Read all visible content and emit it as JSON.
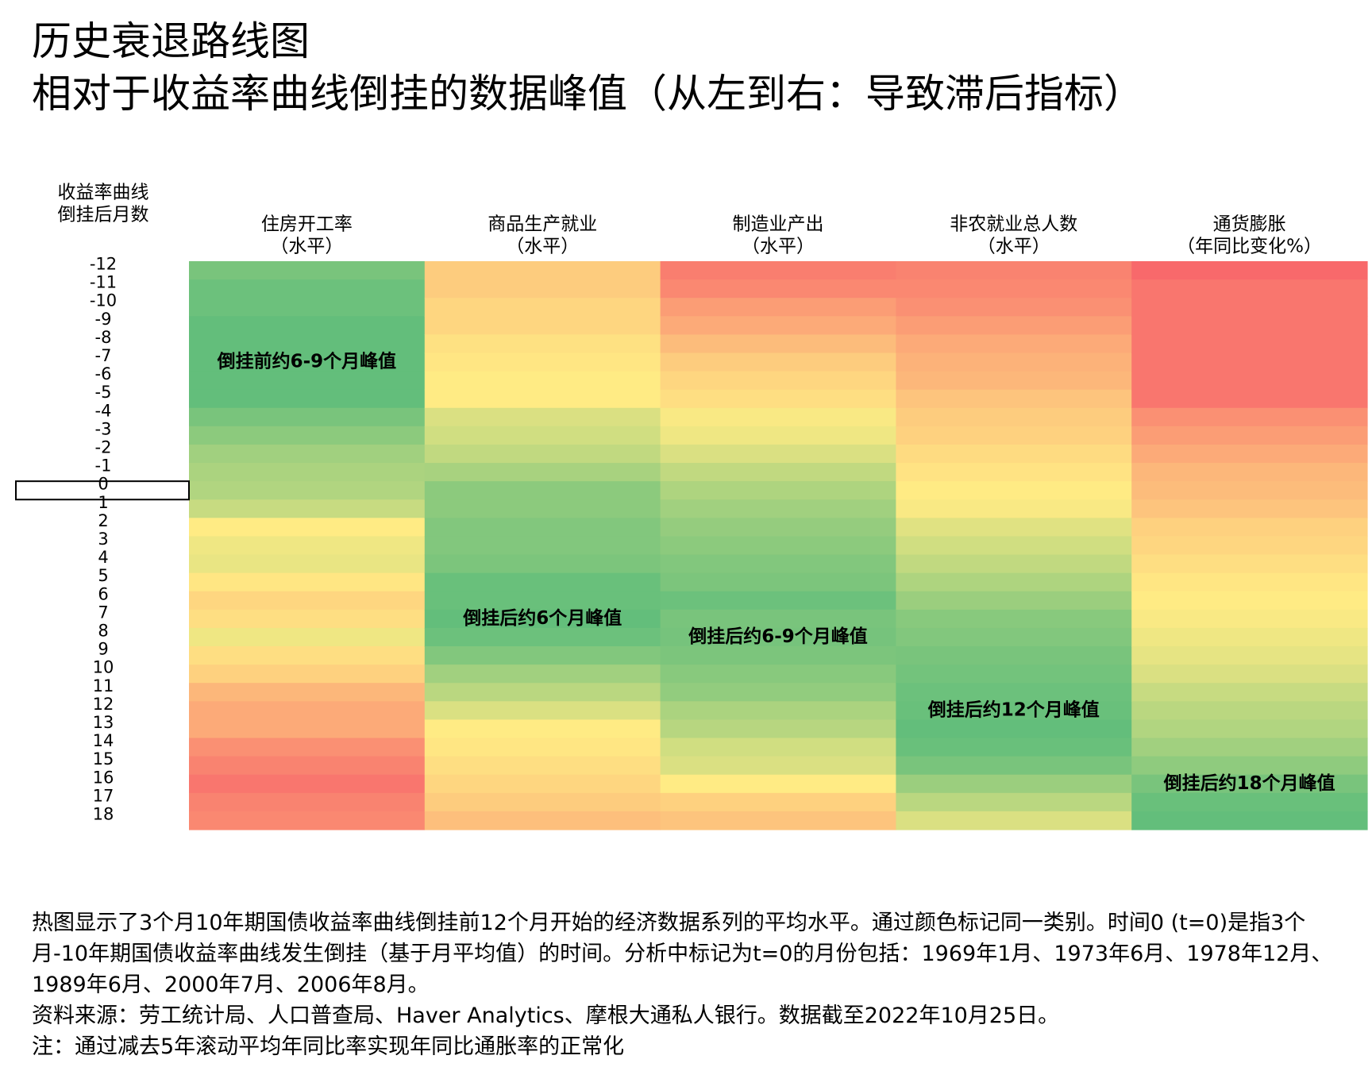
{
  "title": {
    "line1": "历史衰退路线图",
    "line2": "相对于收益率曲线倒挂的数据峰值（从左到右：导致滞后指标）"
  },
  "chart_data": {
    "type": "heatmap",
    "y_axis_title": [
      "收益率曲线",
      "倒挂后月数"
    ],
    "rows": [
      -12,
      -11,
      -10,
      -9,
      -8,
      -7,
      -6,
      -5,
      -4,
      -3,
      -2,
      -1,
      0,
      1,
      2,
      3,
      4,
      5,
      6,
      7,
      8,
      9,
      10,
      11,
      12,
      13,
      14,
      15,
      16,
      17,
      18
    ],
    "highlight_row": 0,
    "color_scale": {
      "low": "#f8696b",
      "mid": "#ffeb84",
      "high": "#63be7b"
    },
    "value_range": [
      0,
      1
    ],
    "columns": [
      {
        "name": "住房开工率",
        "subtitle": "（水平）",
        "annotation": "倒挂前约6-9个月峰值",
        "annotation_row": -7,
        "values": [
          0.93,
          0.97,
          0.97,
          1.0,
          1.0,
          1.0,
          1.0,
          1.0,
          0.93,
          0.87,
          0.8,
          0.77,
          0.75,
          0.68,
          0.5,
          0.55,
          0.57,
          0.48,
          0.42,
          0.45,
          0.55,
          0.45,
          0.4,
          0.3,
          0.25,
          0.25,
          0.15,
          0.1,
          0.05,
          0.1,
          0.12
        ]
      },
      {
        "name": "商品生产就业",
        "subtitle": "（水平）",
        "annotation": "倒挂后约6个月峰值",
        "annotation_row": 7,
        "values": [
          0.38,
          0.38,
          0.42,
          0.42,
          0.46,
          0.48,
          0.5,
          0.5,
          0.62,
          0.65,
          0.7,
          0.78,
          0.87,
          0.87,
          0.9,
          0.9,
          0.92,
          0.98,
          0.98,
          1.0,
          0.97,
          0.9,
          0.8,
          0.72,
          0.62,
          0.5,
          0.48,
          0.45,
          0.42,
          0.38,
          0.33
        ]
      },
      {
        "name": "制造业产出",
        "subtitle": "（水平）",
        "annotation": "倒挂后约6-9个月峰值",
        "annotation_row": 8,
        "values": [
          0.08,
          0.12,
          0.2,
          0.25,
          0.32,
          0.38,
          0.42,
          0.45,
          0.52,
          0.55,
          0.62,
          0.7,
          0.76,
          0.8,
          0.84,
          0.87,
          0.9,
          0.92,
          0.97,
          0.93,
          0.94,
          0.92,
          0.88,
          0.85,
          0.77,
          0.73,
          0.65,
          0.62,
          0.5,
          0.4,
          0.35
        ]
      },
      {
        "name": "非农就业总人数",
        "subtitle": "（水平）",
        "annotation": "倒挂后约12个月峰值",
        "annotation_row": 12,
        "values": [
          0.1,
          0.12,
          0.15,
          0.2,
          0.25,
          0.28,
          0.3,
          0.35,
          0.38,
          0.4,
          0.44,
          0.47,
          0.5,
          0.52,
          0.6,
          0.65,
          0.7,
          0.76,
          0.82,
          0.88,
          0.9,
          0.93,
          0.95,
          0.97,
          0.98,
          1.0,
          0.98,
          0.93,
          0.82,
          0.72,
          0.62
        ]
      },
      {
        "name": "通货膨胀",
        "subtitle": "（年同比变化%）",
        "annotation": "倒挂后约18个月峰值",
        "annotation_row": 16,
        "values": [
          0.0,
          0.05,
          0.05,
          0.05,
          0.05,
          0.05,
          0.05,
          0.05,
          0.15,
          0.2,
          0.25,
          0.3,
          0.32,
          0.35,
          0.4,
          0.42,
          0.45,
          0.48,
          0.5,
          0.52,
          0.55,
          0.58,
          0.62,
          0.68,
          0.72,
          0.75,
          0.8,
          0.86,
          0.93,
          0.98,
          1.0
        ]
      }
    ]
  },
  "notes": {
    "line1": "热图显示了3个月10年期国债收益率曲线倒挂前12个月开始的经济数据系列的平均水平。通过颜色标记同一类别。时间0 (t=0)是指3个月-10年期国债收益率曲线发生倒挂（基于月平均值）的时间。分析中标记为t=0的月份包括：1969年1月、1973年6月、1978年12月、1989年6月、2000年7月、2006年8月。",
    "source": "资料来源：劳工统计局、人口普查局、Haver Analytics、摩根大通私人银行。数据截至2022年10月25日。",
    "note": "注：通过减去5年滚动平均年同比率实现年同比通胀率的正常化"
  }
}
